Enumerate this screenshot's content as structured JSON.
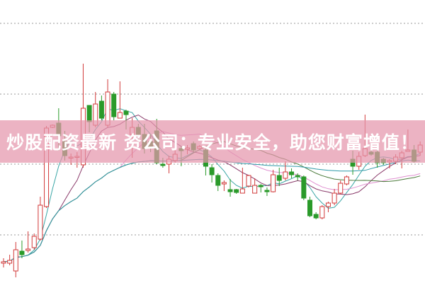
{
  "banner": {
    "text": "炒股配资最新 资公司：专业安全，助您财富增值！"
  },
  "chart_data": {
    "type": "candlestick",
    "title": "",
    "xlabel": "",
    "ylabel": "",
    "ylim": [
      0,
      40
    ],
    "grid": {
      "horizontal": true,
      "style": "dotted",
      "levels": [
        6.8,
        16.8,
        26.7,
        36.7
      ]
    },
    "colors": {
      "up": "#d23a3a",
      "down": "#2a9a2a",
      "grid": "#999999"
    },
    "moving_average_colors": [
      "#3aa6a6",
      "#8a3a6a",
      "#e090d0",
      "#4a7a3a",
      "#2f9aa8"
    ],
    "ohlc": [
      [
        2.8,
        3.5,
        2.2,
        3.0
      ],
      [
        2.8,
        4.0,
        2.5,
        3.2
      ],
      [
        1.7,
        5.8,
        0.8,
        4.7
      ],
      [
        4.5,
        6.0,
        3.5,
        4.0
      ],
      [
        4.6,
        7.3,
        4.3,
        4.8
      ],
      [
        5.0,
        7.0,
        4.7,
        6.6
      ],
      [
        6.2,
        12.2,
        6.0,
        11.0
      ],
      [
        10.8,
        22.2,
        10.6,
        21.9
      ],
      [
        22.0,
        22.4,
        21.9,
        22.3
      ],
      [
        22.6,
        24.7,
        18.7,
        20.8
      ],
      [
        20.0,
        21.5,
        17.3,
        18.0
      ],
      [
        17.8,
        18.3,
        16.7,
        17.8
      ],
      [
        17.8,
        18.5,
        16.3,
        17.9
      ],
      [
        16.7,
        31.0,
        16.3,
        24.7
      ],
      [
        25.1,
        25.1,
        21.3,
        22.8
      ],
      [
        22.3,
        27.0,
        22.0,
        25.3
      ],
      [
        25.7,
        26.5,
        23.0,
        23.3
      ],
      [
        22.3,
        28.8,
        22.0,
        27.0
      ],
      [
        26.7,
        27.0,
        23.0,
        23.5
      ],
      [
        23.3,
        28.5,
        23.3,
        24.1
      ],
      [
        24.3,
        24.5,
        21.7,
        23.8
      ],
      [
        21.0,
        23.3,
        17.7,
        22.0
      ],
      [
        22.0,
        22.5,
        19.3,
        21.0
      ],
      [
        21.0,
        22.5,
        18.3,
        19.0
      ],
      [
        20.0,
        21.0,
        18.5,
        19.3
      ],
      [
        21.5,
        23.2,
        16.8,
        17.0
      ],
      [
        16.8,
        17.7,
        16.3,
        16.6
      ],
      [
        16.8,
        18.0,
        15.5,
        17.5
      ],
      [
        17.3,
        19.0,
        17.0,
        18.2
      ],
      [
        19.0,
        19.3,
        16.5,
        18.7
      ],
      [
        18.9,
        19.5,
        18.2,
        19.1
      ],
      [
        19.7,
        20.0,
        18.5,
        18.8
      ],
      [
        19.0,
        19.5,
        18.8,
        19.3
      ],
      [
        18.8,
        19.0,
        15.2,
        16.5
      ],
      [
        16.3,
        16.8,
        14.2,
        15.3
      ],
      [
        15.2,
        15.5,
        13.0,
        13.8
      ],
      [
        14.0,
        14.5,
        13.0,
        14.2
      ],
      [
        13.2,
        14.7,
        12.2,
        12.9
      ],
      [
        13.2,
        13.3,
        12.6,
        12.8
      ],
      [
        12.7,
        16.3,
        12.7,
        13.3
      ],
      [
        13.7,
        15.3,
        13.5,
        15.2
      ],
      [
        12.7,
        14.8,
        12.7,
        13.8
      ],
      [
        13.8,
        14.0,
        12.8,
        13.6
      ],
      [
        13.1,
        13.5,
        12.3,
        12.9
      ],
      [
        12.9,
        16.0,
        12.8,
        15.3
      ],
      [
        15.2,
        16.3,
        13.7,
        14.5
      ],
      [
        14.8,
        17.2,
        14.5,
        15.7
      ],
      [
        15.7,
        16.2,
        14.8,
        15.3
      ],
      [
        15.2,
        15.5,
        14.5,
        15.0
      ],
      [
        15.0,
        15.2,
        11.7,
        12.0
      ],
      [
        11.7,
        12.2,
        9.3,
        9.5
      ],
      [
        9.7,
        10.0,
        9.0,
        9.2
      ],
      [
        9.2,
        11.0,
        9.0,
        10.8
      ],
      [
        10.8,
        11.5,
        10.0,
        11.3
      ],
      [
        11.3,
        13.3,
        11.0,
        12.7
      ],
      [
        12.7,
        14.5,
        12.5,
        14.1
      ],
      [
        14.0,
        15.2,
        13.8,
        15.0
      ],
      [
        17.5,
        18.7,
        15.3,
        16.5
      ],
      [
        16.5,
        18.5,
        16.0,
        17.9
      ],
      [
        18.0,
        23.8,
        17.8,
        19.0
      ],
      [
        18.5,
        19.0,
        18.0,
        18.2
      ],
      [
        18.5,
        19.0,
        16.3,
        17.0
      ],
      [
        17.5,
        17.7,
        16.7,
        17.0
      ],
      [
        17.1,
        17.5,
        16.2,
        17.3
      ],
      [
        17.2,
        18.2,
        16.8,
        17.8
      ],
      [
        17.7,
        18.7,
        16.2,
        18.4
      ],
      [
        18.6,
        21.7,
        18.6,
        18.8
      ],
      [
        18.8,
        19.5,
        17.0,
        17.2
      ],
      [
        18.5,
        20.0,
        18.0,
        19.5
      ]
    ]
  }
}
